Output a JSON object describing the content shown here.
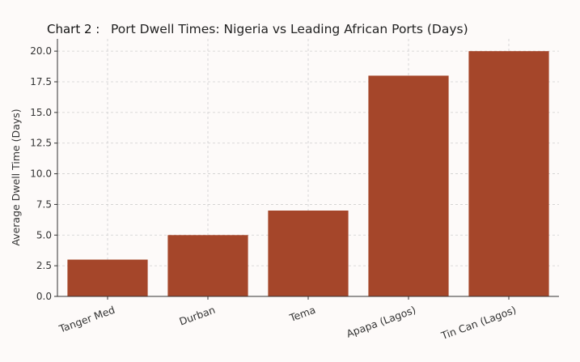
{
  "chart_data": {
    "type": "bar",
    "title_prefix": "Chart 2 :",
    "title": "Port Dwell Times: Nigeria vs Leading African Ports (Days)",
    "xlabel": "",
    "ylabel": "Average Dwell Time (Days)",
    "categories": [
      "Tanger Med",
      "Durban",
      "Tema",
      "Apapa (Lagos)",
      "Tin Can (Lagos)"
    ],
    "values": [
      3,
      5,
      7,
      18,
      20
    ],
    "ylim": [
      0,
      21
    ],
    "yticks": [
      "0.0",
      "2.5",
      "5.0",
      "7.5",
      "10.0",
      "12.5",
      "15.0",
      "17.5",
      "20.0"
    ],
    "grid": true,
    "bar_color": "#a5462a",
    "legend": "none"
  }
}
